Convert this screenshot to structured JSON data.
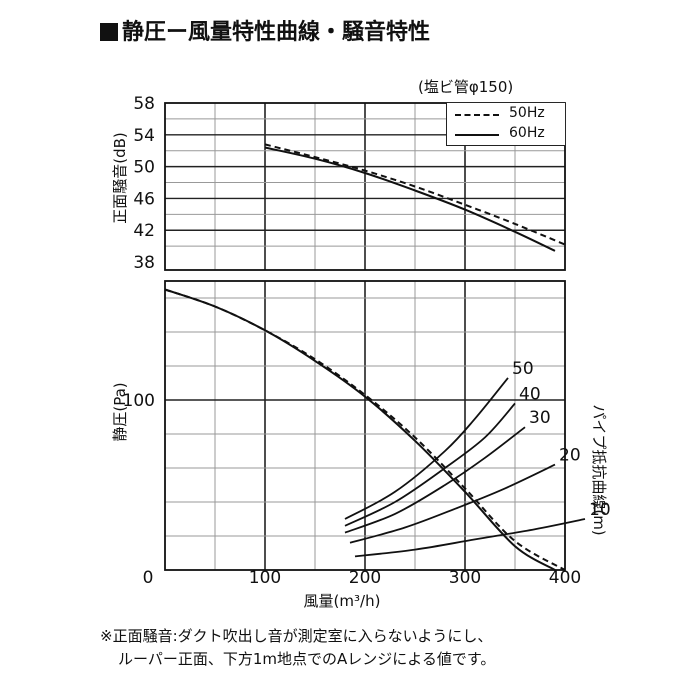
{
  "title": "静圧ー風量特性曲線・騒音特性",
  "condition": "(塩ビ管φ150)",
  "footnote": [
    "※正面騒音:ダクト吹出し音が測定室に入らないようにし、",
    "ルーパー正面、下方1m地点でのAレンジによる値です。"
  ],
  "chart_data": {
    "type": "line",
    "xlabel": "風量(m³/h)",
    "x_ticks": [
      "0",
      "100",
      "200",
      "300",
      "400"
    ],
    "xlim": [
      0,
      400
    ],
    "grid": true,
    "legend": {
      "placement": "top-right",
      "entries": [
        {
          "name": "50Hz",
          "style": "dashed"
        },
        {
          "name": "60Hz",
          "style": "solid"
        }
      ]
    },
    "panels": [
      {
        "ylabel": "正面騒音(dB)",
        "y_ticks": [
          "58",
          "54",
          "50",
          "46",
          "42",
          "38"
        ],
        "ylim": [
          37,
          58
        ],
        "series": [
          {
            "name": "50Hz",
            "style": "dashed",
            "x": [
              100,
              150,
              200,
              250,
              300,
              350,
              400
            ],
            "y": [
              52.8,
              51.2,
              49.5,
              47.5,
              45.2,
              42.8,
              40.2
            ]
          },
          {
            "name": "60Hz",
            "style": "solid",
            "x": [
              100,
              150,
              200,
              250,
              300,
              350,
              390
            ],
            "y": [
              52.4,
              51.0,
              49.2,
              47.0,
              44.6,
              41.8,
              39.4
            ]
          }
        ]
      },
      {
        "ylabel": "静圧(Pa)",
        "y_ticks": [
          "100"
        ],
        "ylim": [
          0,
          170
        ],
        "series": [
          {
            "name": "50Hz",
            "style": "dashed",
            "x": [
              0,
              50,
              100,
              150,
              200,
              250,
              300,
              350,
              400
            ],
            "y": [
              165,
              155,
              141,
              124,
              103,
              78,
              48,
              17,
              0
            ]
          },
          {
            "name": "60Hz",
            "style": "solid",
            "x": [
              0,
              50,
              100,
              150,
              200,
              250,
              300,
              350,
              390
            ],
            "y": [
              165,
              155,
              141,
              123,
              102,
              76,
              46,
              14,
              0
            ]
          }
        ],
        "resistance_label": "パイプ抵抗曲線(m)",
        "resistance_curves": [
          {
            "label": "50",
            "x": [
              180,
              230,
              280,
              310,
              343
            ],
            "y": [
              30,
              46,
              70,
              89,
              113
            ]
          },
          {
            "label": "40",
            "x": [
              180,
              230,
              280,
              320,
              350
            ],
            "y": [
              26,
              40,
              60,
              78,
              98
            ]
          },
          {
            "label": "30",
            "x": [
              180,
              230,
              280,
              320,
              360
            ],
            "y": [
              22,
              33,
              50,
              66,
              84
            ]
          },
          {
            "label": "20",
            "x": [
              185,
              240,
              290,
              340,
              390
            ],
            "y": [
              16,
              25,
              36,
              48,
              62
            ]
          },
          {
            "label": "10",
            "x": [
              190,
              250,
              310,
              370,
              420
            ],
            "y": [
              8,
              12,
              18,
              24,
              30
            ]
          }
        ]
      }
    ]
  }
}
